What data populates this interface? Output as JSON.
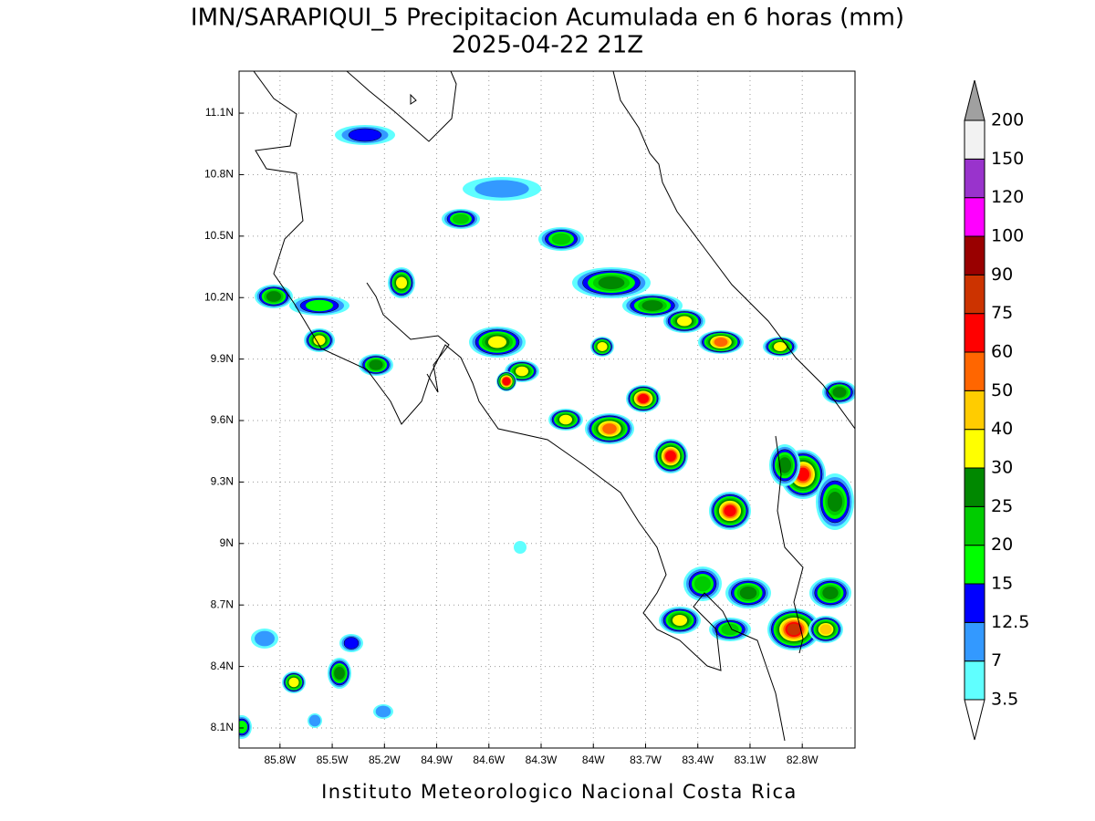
{
  "map": {
    "title": "IMN/SARAPIQUI_5 Precipitacion Acumulada en 6 horas (mm)",
    "subtitle": "2025-04-22 21Z",
    "footer": "Instituto Meteorologico Nacional Costa Rica",
    "lonlim": [
      -86.035,
      -82.497
    ],
    "latlim": [
      8.002,
      11.305
    ],
    "lonticks": [
      {
        "value": -85.8,
        "label": "85.8W"
      },
      {
        "value": -85.5,
        "label": "85.5W"
      },
      {
        "value": -85.2,
        "label": "85.2W"
      },
      {
        "value": -84.9,
        "label": "84.9W"
      },
      {
        "value": -84.6,
        "label": "84.6W"
      },
      {
        "value": -84.3,
        "label": "84.3W"
      },
      {
        "value": -84.0,
        "label": "84W"
      },
      {
        "value": -83.7,
        "label": "83.7W"
      },
      {
        "value": -83.4,
        "label": "83.4W"
      },
      {
        "value": -83.1,
        "label": "83.1W"
      },
      {
        "value": -82.8,
        "label": "82.8W"
      }
    ],
    "latticks": [
      {
        "value": 8.1,
        "label": "8.1N"
      },
      {
        "value": 8.4,
        "label": "8.4N"
      },
      {
        "value": 8.7,
        "label": "8.7N"
      },
      {
        "value": 9.0,
        "label": "9N"
      },
      {
        "value": 9.3,
        "label": "9.3N"
      },
      {
        "value": 9.6,
        "label": "9.6N"
      },
      {
        "value": 9.9,
        "label": "9.9N"
      },
      {
        "value": 10.2,
        "label": "10.2N"
      },
      {
        "value": 10.5,
        "label": "10.5N"
      },
      {
        "value": 10.8,
        "label": "10.8N"
      },
      {
        "value": 11.1,
        "label": "11.1N"
      }
    ],
    "grid": true,
    "colorbar": {
      "levels": [
        3.5,
        7,
        12.5,
        15,
        20,
        25,
        30,
        40,
        50,
        60,
        75,
        90,
        100,
        120,
        150,
        200
      ],
      "colors": [
        "#60ffff",
        "#3399ff",
        "#0000ff",
        "#00ff00",
        "#00cc00",
        "#008800",
        "#ffff00",
        "#ffcc00",
        "#ff6600",
        "#ff0000",
        "#cc3300",
        "#990000",
        "#ff00ff",
        "#9933cc",
        "#f2f2f2"
      ],
      "under_color": "#ffffff",
      "over_color": "#a0a0a0"
    }
  }
}
